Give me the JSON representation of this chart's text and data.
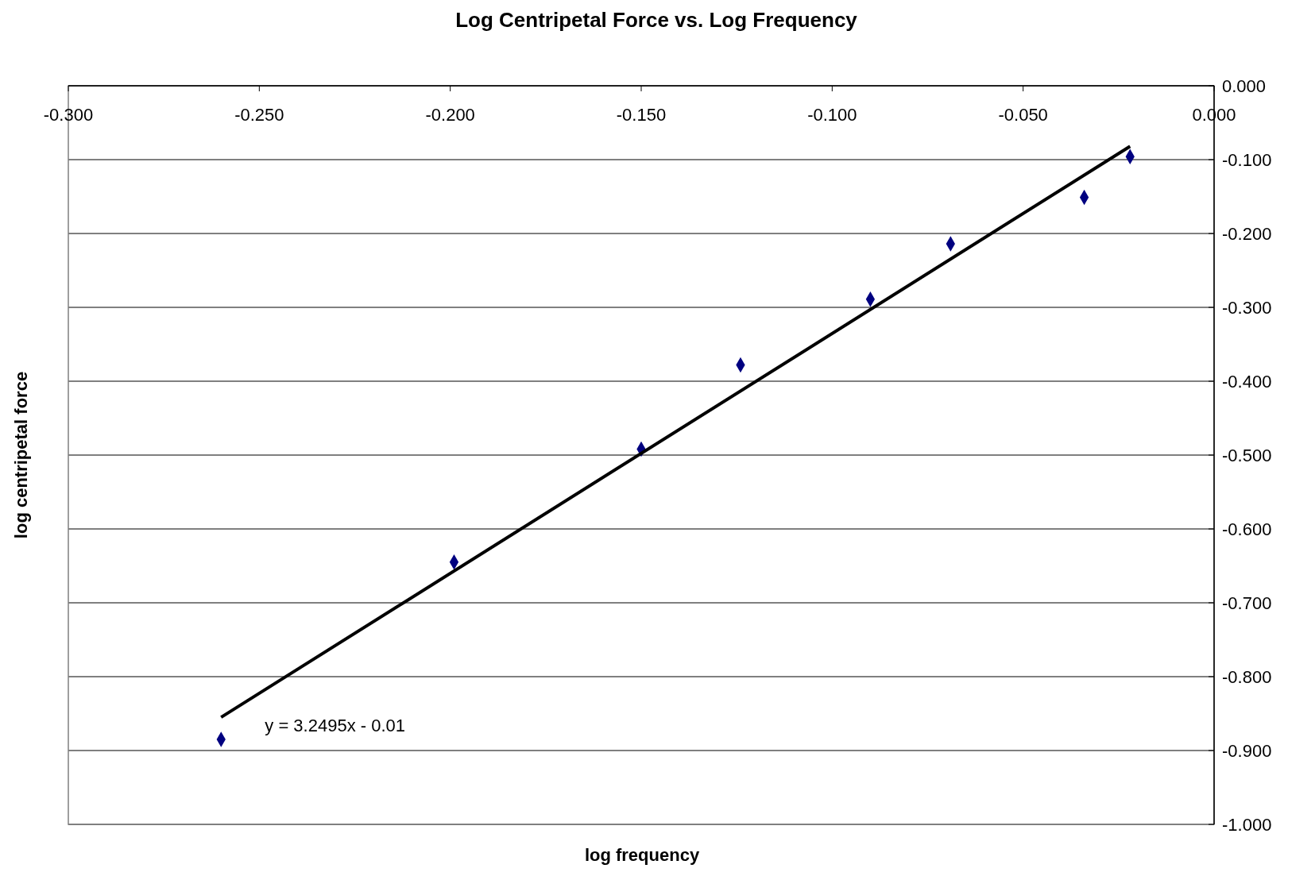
{
  "chart_data": {
    "type": "scatter",
    "title": "Log Centripetal Force vs. Log Frequency",
    "xlabel": "log frequency",
    "ylabel": "log centripetal force",
    "xlim": [
      -0.3,
      0
    ],
    "ylim": [
      -1,
      0
    ],
    "xticks": [
      {
        "value": -0.3,
        "label": "-0.300"
      },
      {
        "value": -0.25,
        "label": "-0.250"
      },
      {
        "value": -0.2,
        "label": "-0.200"
      },
      {
        "value": -0.15,
        "label": "-0.150"
      },
      {
        "value": -0.1,
        "label": "-0.100"
      },
      {
        "value": -0.05,
        "label": "-0.050"
      },
      {
        "value": 0,
        "label": "0.000"
      }
    ],
    "yticks": [
      {
        "value": 0,
        "label": "0.000"
      },
      {
        "value": -0.1,
        "label": "-0.100"
      },
      {
        "value": -0.2,
        "label": "-0.200"
      },
      {
        "value": -0.3,
        "label": "-0.300"
      },
      {
        "value": -0.4,
        "label": "-0.400"
      },
      {
        "value": -0.5,
        "label": "-0.500"
      },
      {
        "value": -0.6,
        "label": "-0.600"
      },
      {
        "value": -0.7,
        "label": "-0.700"
      },
      {
        "value": -0.8,
        "label": "-0.800"
      },
      {
        "value": -0.9,
        "label": "-0.900"
      },
      {
        "value": -1,
        "label": "-1.000"
      }
    ],
    "grid": "y",
    "marker": "diamond",
    "annotations": [
      "y = 3.2495x - 0.01"
    ],
    "series": [
      {
        "color": "#000080",
        "x": [
          -0.26,
          -0.199,
          -0.15,
          -0.124,
          -0.09,
          -0.069,
          -0.034,
          -0.022
        ],
        "values": [
          -0.885,
          -0.645,
          -0.492,
          -0.378,
          -0.289,
          -0.214,
          -0.151,
          -0.096
        ]
      },
      {
        "type": "line",
        "marker": "none",
        "color": "#000000",
        "x": [
          -0.26,
          -0.022
        ],
        "values": [
          -0.855,
          -0.082
        ]
      }
    ]
  }
}
